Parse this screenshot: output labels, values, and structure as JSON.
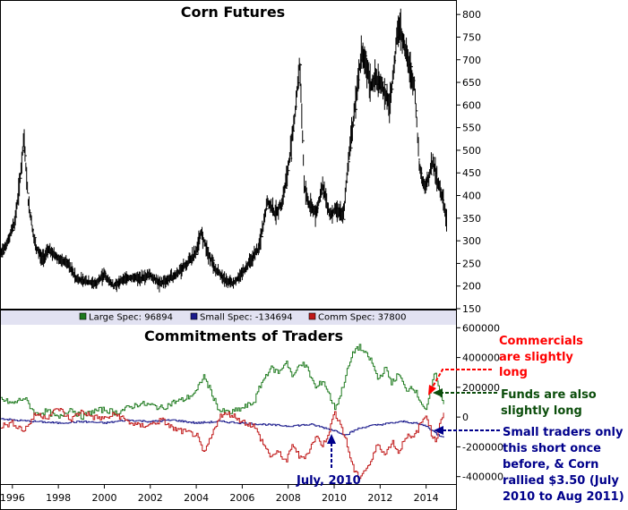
{
  "colors": {
    "large": "#1e7a1e",
    "small": "#1a1a8c",
    "comm": "#c01818",
    "price": "#000000",
    "legend_bg": "#e2e2f2",
    "anno_red": "#ff0000",
    "anno_green": "#0b4d0b",
    "anno_blue": "#00008b"
  },
  "chart_data": [
    {
      "type": "bar",
      "title": "Corn Futures",
      "ylim": [
        150,
        830
      ],
      "yticks": [
        150,
        200,
        250,
        300,
        350,
        400,
        450,
        500,
        550,
        600,
        650,
        700,
        750,
        800
      ],
      "xlim": [
        1995.5,
        2015.3
      ],
      "x": [
        1995.5,
        1995.8,
        1996.1,
        1996.3,
        1996.5,
        1996.7,
        1997.0,
        1997.3,
        1997.6,
        1998.0,
        1998.4,
        1998.8,
        1999.2,
        1999.6,
        2000.0,
        2000.4,
        2000.8,
        2001.2,
        2001.6,
        2002.0,
        2002.4,
        2002.8,
        2003.2,
        2003.6,
        2004.0,
        2004.2,
        2004.5,
        2004.8,
        2005.2,
        2005.6,
        2006.0,
        2006.4,
        2006.7,
        2006.9,
        2007.1,
        2007.4,
        2007.7,
        2008.0,
        2008.3,
        2008.5,
        2008.7,
        2008.9,
        2009.2,
        2009.5,
        2009.8,
        2010.1,
        2010.4,
        2010.6,
        2010.8,
        2011.0,
        2011.2,
        2011.4,
        2011.6,
        2011.8,
        2012.1,
        2012.4,
        2012.6,
        2012.75,
        2012.9,
        2013.2,
        2013.5,
        2013.7,
        2013.9,
        2014.1,
        2014.3,
        2014.5,
        2014.7,
        2014.9
      ],
      "values": [
        270,
        300,
        340,
        420,
        530,
        380,
        290,
        260,
        280,
        260,
        250,
        215,
        210,
        205,
        225,
        200,
        215,
        220,
        215,
        225,
        205,
        215,
        230,
        250,
        275,
        320,
        275,
        240,
        215,
        205,
        230,
        260,
        280,
        330,
        390,
        360,
        380,
        460,
        580,
        700,
        420,
        380,
        360,
        420,
        360,
        370,
        355,
        470,
        550,
        640,
        720,
        690,
        640,
        660,
        640,
        600,
        680,
        770,
        760,
        700,
        640,
        470,
        420,
        440,
        480,
        430,
        400,
        340
      ]
    },
    {
      "type": "line",
      "title": "Commitments of Traders",
      "ylim": [
        -450000,
        620000
      ],
      "yticks": [
        -400000,
        -200000,
        0,
        200000,
        400000,
        600000
      ],
      "ytick_labels": [
        "-400000",
        "-200000",
        "0",
        "200000",
        "400000",
        "600000"
      ],
      "xlim": [
        1995.5,
        2015.3
      ],
      "xticks": [
        1996,
        1998,
        2000,
        2002,
        2004,
        2006,
        2008,
        2010,
        2012,
        2014
      ],
      "xtick_labels": [
        "1996",
        "1998",
        "2000",
        "2002",
        "2004",
        "2006",
        "2008",
        "2010",
        "2012",
        "2014"
      ],
      "legend_position": "top",
      "series": [
        {
          "name": "Large Spec: 96894",
          "key": "large",
          "x": [
            1995.5,
            1996.0,
            1996.5,
            1997.0,
            1997.5,
            1998.0,
            1998.5,
            1999.0,
            1999.5,
            2000.0,
            2000.5,
            2001.0,
            2001.5,
            2002.0,
            2002.5,
            2003.0,
            2003.5,
            2004.0,
            2004.3,
            2004.6,
            2005.0,
            2005.5,
            2006.0,
            2006.5,
            2006.8,
            2007.2,
            2007.6,
            2007.9,
            2008.2,
            2008.5,
            2008.8,
            2009.2,
            2009.5,
            2009.8,
            2010.0,
            2010.2,
            2010.5,
            2010.7,
            2010.9,
            2011.1,
            2011.3,
            2011.6,
            2011.9,
            2012.2,
            2012.5,
            2012.8,
            2013.1,
            2013.4,
            2013.7,
            2014.0,
            2014.2,
            2014.4,
            2014.6,
            2014.8
          ],
          "values": [
            120000,
            90000,
            130000,
            20000,
            40000,
            -10000,
            60000,
            0,
            40000,
            50000,
            30000,
            60000,
            90000,
            80000,
            60000,
            100000,
            120000,
            170000,
            280000,
            180000,
            40000,
            30000,
            60000,
            100000,
            220000,
            330000,
            300000,
            380000,
            260000,
            370000,
            330000,
            190000,
            250000,
            140000,
            60000,
            120000,
            280000,
            380000,
            460000,
            470000,
            430000,
            380000,
            250000,
            330000,
            230000,
            290000,
            180000,
            210000,
            120000,
            40000,
            180000,
            310000,
            130000,
            96894
          ]
        },
        {
          "name": "Small Spec: -134694",
          "key": "small",
          "x": [
            1995.5,
            1996.0,
            1997.0,
            1998.0,
            1999.0,
            2000.0,
            2001.0,
            2002.0,
            2003.0,
            2004.0,
            2005.0,
            2006.0,
            2007.0,
            2008.0,
            2009.0,
            2010.0,
            2010.5,
            2011.0,
            2011.5,
            2012.0,
            2012.5,
            2013.0,
            2013.5,
            2014.0,
            2014.5,
            2014.8
          ],
          "values": [
            -10000,
            -20000,
            -30000,
            -40000,
            -30000,
            -40000,
            -20000,
            -30000,
            -20000,
            -40000,
            -30000,
            -40000,
            -50000,
            -60000,
            -50000,
            -90000,
            -120000,
            -80000,
            -60000,
            -50000,
            -40000,
            -30000,
            -40000,
            -60000,
            -120000,
            -134694
          ]
        },
        {
          "name": "Comm Spec: 37800",
          "key": "comm",
          "x": [
            1995.5,
            1996.0,
            1996.5,
            1997.0,
            1997.5,
            1998.0,
            1998.5,
            1999.0,
            1999.5,
            2000.0,
            2000.5,
            2001.0,
            2001.5,
            2002.0,
            2002.5,
            2003.0,
            2003.5,
            2004.0,
            2004.3,
            2004.6,
            2005.0,
            2005.5,
            2006.0,
            2006.5,
            2006.8,
            2007.2,
            2007.6,
            2007.9,
            2008.2,
            2008.5,
            2008.8,
            2009.2,
            2009.5,
            2009.8,
            2010.0,
            2010.2,
            2010.5,
            2010.7,
            2010.9,
            2011.1,
            2011.3,
            2011.6,
            2011.9,
            2012.2,
            2012.5,
            2012.8,
            2013.1,
            2013.4,
            2013.7,
            2014.0,
            2014.2,
            2014.4,
            2014.6,
            2014.8
          ],
          "values": [
            -60000,
            -40000,
            -90000,
            20000,
            0,
            60000,
            -20000,
            40000,
            0,
            -10000,
            20000,
            -30000,
            -60000,
            -50000,
            -20000,
            -80000,
            -100000,
            -120000,
            -250000,
            -150000,
            10000,
            20000,
            -30000,
            -60000,
            -150000,
            -260000,
            -240000,
            -300000,
            -180000,
            -280000,
            -250000,
            -130000,
            -190000,
            -80000,
            30000,
            -20000,
            -160000,
            -280000,
            -380000,
            -400000,
            -360000,
            -300000,
            -170000,
            -260000,
            -160000,
            -240000,
            -120000,
            -150000,
            -60000,
            20000,
            -100000,
            -170000,
            -20000,
            37800
          ]
        }
      ]
    }
  ],
  "annotations": {
    "commercials": [
      "Commercials",
      "are slightly",
      "long"
    ],
    "funds": [
      "Funds are also",
      "slightly long"
    ],
    "small_traders": [
      "Small traders only",
      "this short once",
      "before, &   Corn",
      "rallied $3.50 (July",
      "2010 to Aug 2011)"
    ],
    "july": "July, 2010"
  }
}
